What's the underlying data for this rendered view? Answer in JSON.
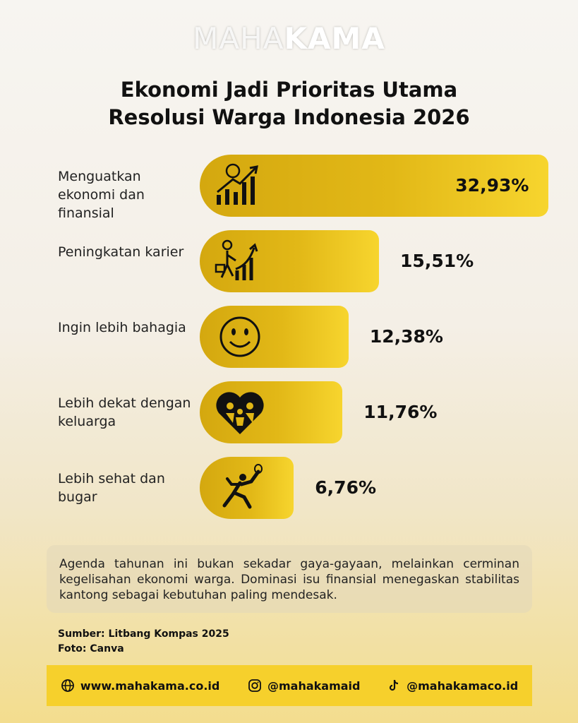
{
  "brand": [
    "MAHA",
    "KAMA"
  ],
  "chart_data": {
    "type": "bar",
    "orientation": "horizontal",
    "title": "Ekonomi Jadi Prioritas Utama Resolusi Warga Indonesia 2026",
    "categories": [
      "Menguatkan ekonomi dan finansial",
      "Peningkatan karier",
      "Ingin lebih bahagia",
      "Lebih dekat dengan keluarga",
      "Lebih sehat dan bugar"
    ],
    "values": [
      32.93,
      15.51,
      12.38,
      11.76,
      6.76
    ],
    "value_labels": [
      "32,93%",
      "15,51%",
      "12,38%",
      "11,76%",
      "6,76%"
    ],
    "color": "#e0b615"
  },
  "note": "Agenda tahunan ini bukan sekadar gaya-gayaan, melainkan cerminan kegelisahan ekonomi warga. Dominasi isu finansial menegaskan stabilitas kantong sebagai kebutuhan paling mendesak.",
  "source": "Sumber: Litbang Kompas 2025",
  "photo_credit": "Foto: Canva",
  "footer": [
    "www.mahakama.co.id",
    "@mahakamaid",
    "@mahakamaco.id"
  ]
}
